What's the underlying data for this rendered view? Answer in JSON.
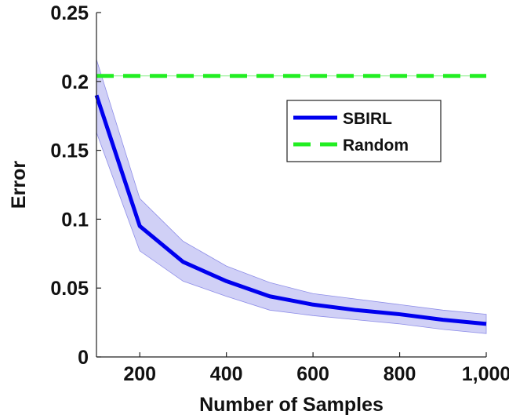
{
  "chart_data": {
    "type": "line",
    "title": "",
    "xlabel": "Number of Samples",
    "ylabel": "Error",
    "xlim": [
      100,
      1000
    ],
    "ylim": [
      0,
      0.25
    ],
    "x_ticks": [
      200,
      400,
      600,
      800,
      1000
    ],
    "x_tick_labels": [
      "200",
      "400",
      "600",
      "800",
      "1,000"
    ],
    "y_ticks": [
      0,
      0.05,
      0.1,
      0.15,
      0.2,
      0.25
    ],
    "y_tick_labels": [
      "0",
      "0.05",
      "0.1",
      "0.15",
      "0.2",
      "0.25"
    ],
    "grid": false,
    "legend_position": "top-right",
    "series": [
      {
        "name": "SBIRL",
        "style": "solid",
        "color": "#0000ee",
        "x": [
          100,
          200,
          300,
          400,
          500,
          600,
          700,
          800,
          900,
          1000
        ],
        "values": [
          0.19,
          0.095,
          0.069,
          0.055,
          0.044,
          0.038,
          0.034,
          0.031,
          0.027,
          0.024
        ],
        "band_upper": [
          0.216,
          0.115,
          0.084,
          0.066,
          0.054,
          0.046,
          0.042,
          0.038,
          0.034,
          0.031
        ],
        "band_lower": [
          0.163,
          0.077,
          0.055,
          0.044,
          0.034,
          0.03,
          0.027,
          0.024,
          0.02,
          0.017
        ],
        "band_color": "#c8c8f5"
      },
      {
        "name": "Random",
        "style": "dashed",
        "color": "#22ee22",
        "x": [
          100,
          1000
        ],
        "values": [
          0.204,
          0.204
        ]
      }
    ]
  }
}
